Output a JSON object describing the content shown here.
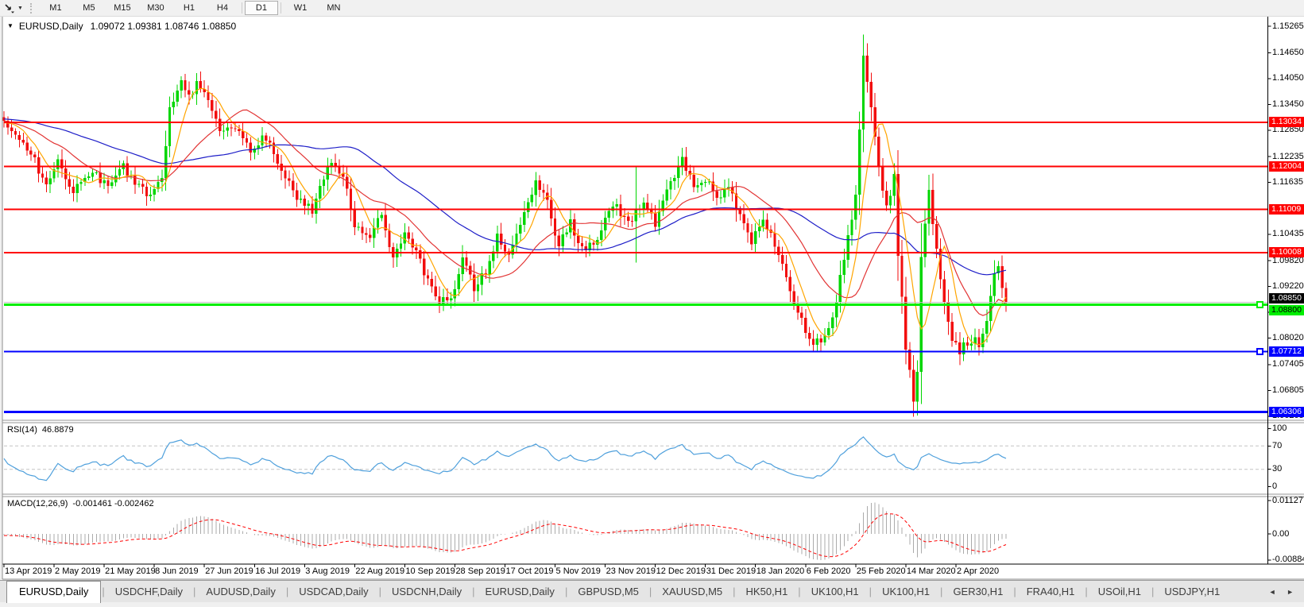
{
  "toolbar": {
    "caret_icon": "▼",
    "timeframes": [
      "M1",
      "M5",
      "M15",
      "M30",
      "H1",
      "H4",
      "D1",
      "W1",
      "MN"
    ],
    "active_timeframe": "D1"
  },
  "window": {
    "title_icon": "▼",
    "symbol": "EURUSD,Daily",
    "ohlc": "1.09072 1.09381 1.08746 1.08850"
  },
  "price_axis": {
    "labels": [
      "1.15265",
      "1.14650",
      "1.14050",
      "1.13450",
      "1.12850",
      "1.12235",
      "1.11635",
      "1.10435",
      "1.09820",
      "1.09220",
      "1.08620",
      "1.08020",
      "1.07405",
      "1.06805",
      "1.06205"
    ]
  },
  "hlines": [
    {
      "label": "1.13034",
      "price": 1.13034,
      "color": "#ff0000",
      "text_color": "#ffffff",
      "width": 2,
      "selected": false
    },
    {
      "label": "1.12004",
      "price": 1.12004,
      "color": "#ff0000",
      "text_color": "#ffffff",
      "width": 2,
      "selected": false
    },
    {
      "label": "1.11009",
      "price": 1.11009,
      "color": "#ff0000",
      "text_color": "#ffffff",
      "width": 2,
      "selected": false
    },
    {
      "label": "1.10008",
      "price": 1.10008,
      "color": "#ff0000",
      "text_color": "#ffffff",
      "width": 2,
      "selected": false
    },
    {
      "label": "1.08800",
      "price": 1.088,
      "color": "#00ee00",
      "text_color": "#000000",
      "width": 3,
      "selected": true
    },
    {
      "label": "1.07712",
      "price": 1.07712,
      "color": "#0000ff",
      "text_color": "#ffffff",
      "width": 2,
      "selected": true
    },
    {
      "label": "1.06306",
      "price": 1.06306,
      "color": "#0000ff",
      "text_color": "#ffffff",
      "width": 3,
      "selected": false
    }
  ],
  "bid": {
    "label": "1.08850",
    "price": 1.0885,
    "line_color": "#c0c0c0",
    "label_bg": "#000000",
    "label_fg": "#ffffff"
  },
  "rsi": {
    "name": "RSI(14)",
    "value": "46.8879",
    "line_color": "#4fa0dc",
    "levels": [
      {
        "label": "100",
        "value": 100
      },
      {
        "label": "70",
        "value": 70
      },
      {
        "label": "30",
        "value": 30
      },
      {
        "label": "0",
        "value": 0
      }
    ],
    "dashed_levels": [
      70,
      30
    ]
  },
  "macd": {
    "name": "MACD(12,26,9)",
    "value": "-0.001461 -0.002462",
    "bar_color": "#ababab",
    "signal_color": "#ff0000",
    "axis": [
      {
        "label": "0.011277",
        "value": 0.011277
      },
      {
        "label": "0.00",
        "value": 0
      },
      {
        "label": "-0.008845",
        "value": -0.008845
      }
    ]
  },
  "date_axis": {
    "candles_per_label": 13,
    "labels": [
      "13 Apr 2019",
      "2 May 2019",
      "21 May 2019",
      "8 Jun 2019",
      "27 Jun 2019",
      "16 Jul 2019",
      "3 Aug 2019",
      "22 Aug 2019",
      "10 Sep 2019",
      "28 Sep 2019",
      "17 Oct 2019",
      "5 Nov 2019",
      "23 Nov 2019",
      "12 Dec 2019",
      "31 Dec 2019",
      "18 Jan 2020",
      "6 Feb 2020",
      "25 Feb 2020",
      "14 Mar 2020",
      "2 Apr 2020"
    ]
  },
  "tabs": {
    "items": [
      "EURUSD,Daily",
      "USDCHF,Daily",
      "AUDUSD,Daily",
      "USDCAD,Daily",
      "USDCNH,Daily",
      "EURUSD,Daily",
      "GBPUSD,M5",
      "XAUUSD,M5",
      "HK50,H1",
      "UK100,H1",
      "UK100,H1",
      "GER30,H1",
      "FRA40,H1",
      "USOil,H1",
      "USDJPY,H1"
    ],
    "active_index": 0,
    "scroll_left_icon": "◄",
    "scroll_right_icon": "►"
  },
  "chart_data": {
    "type": "candlestick",
    "symbol": "EURUSD",
    "timeframe": "Daily",
    "candle_count": 261,
    "bull_color": "#00d600",
    "bear_color": "#f20d0d",
    "price_axis_top": 1.15265,
    "price_axis_bottom": 1.06205,
    "ma_lines": [
      {
        "period": 7,
        "color": "#ffa500"
      },
      {
        "period": 21,
        "color": "#e23434"
      },
      {
        "period": 50,
        "color": "#1e1ec8"
      }
    ],
    "anchors": [
      [
        0,
        1.13
      ],
      [
        3,
        1.1268
      ],
      [
        7,
        1.1235
      ],
      [
        11,
        1.115
      ],
      [
        14,
        1.1215
      ],
      [
        18,
        1.1145
      ],
      [
        23,
        1.1185
      ],
      [
        27,
        1.116
      ],
      [
        31,
        1.12
      ],
      [
        35,
        1.1155
      ],
      [
        38,
        1.1125
      ],
      [
        41,
        1.118
      ],
      [
        43,
        1.133
      ],
      [
        46,
        1.139
      ],
      [
        48,
        1.136
      ],
      [
        50,
        1.14
      ],
      [
        52,
        1.137
      ],
      [
        56,
        1.129
      ],
      [
        60,
        1.1285
      ],
      [
        64,
        1.124
      ],
      [
        68,
        1.127
      ],
      [
        72,
        1.119
      ],
      [
        76,
        1.1125
      ],
      [
        80,
        1.11
      ],
      [
        84,
        1.1205
      ],
      [
        88,
        1.1185
      ],
      [
        91,
        1.106
      ],
      [
        95,
        1.104
      ],
      [
        98,
        1.109
      ],
      [
        101,
        1.099
      ],
      [
        104,
        1.104
      ],
      [
        107,
        1.1
      ],
      [
        110,
        1.093
      ],
      [
        113,
        1.089
      ],
      [
        116,
        1.0885
      ],
      [
        119,
        1.099
      ],
      [
        122,
        1.092
      ],
      [
        125,
        1.0955
      ],
      [
        128,
        1.104
      ],
      [
        131,
        1.1
      ],
      [
        134,
        1.1075
      ],
      [
        138,
        1.116
      ],
      [
        141,
        1.112
      ],
      [
        144,
        1.1015
      ],
      [
        147,
        1.107
      ],
      [
        150,
        1.1005
      ],
      [
        153,
        1.102
      ],
      [
        156,
        1.1075
      ],
      [
        159,
        1.111
      ],
      [
        162,
        1.1065
      ],
      [
        164,
        1.109
      ],
      [
        166,
        1.1115
      ],
      [
        169,
        1.107
      ],
      [
        173,
        1.116
      ],
      [
        176,
        1.1215
      ],
      [
        179,
        1.116
      ],
      [
        182,
        1.1175
      ],
      [
        185,
        1.112
      ],
      [
        188,
        1.115
      ],
      [
        191,
        1.1085
      ],
      [
        194,
        1.103
      ],
      [
        197,
        1.108
      ],
      [
        200,
        1.1015
      ],
      [
        203,
        1.095
      ],
      [
        206,
        1.086
      ],
      [
        209,
        1.08
      ],
      [
        212,
        1.079
      ],
      [
        215,
        1.085
      ],
      [
        218,
        1.0985
      ],
      [
        221,
        1.1135
      ],
      [
        222,
        1.129
      ],
      [
        223,
        1.1465
      ],
      [
        224,
        1.139
      ],
      [
        226,
        1.128
      ],
      [
        228,
        1.114
      ],
      [
        229,
        1.11
      ],
      [
        231,
        1.118
      ],
      [
        232,
        1.1
      ],
      [
        234,
        1.078
      ],
      [
        236,
        1.066
      ],
      [
        237,
        1.073
      ],
      [
        238,
        1.098
      ],
      [
        240,
        1.114
      ],
      [
        242,
        1.101
      ],
      [
        244,
        1.088
      ],
      [
        246,
        1.08
      ],
      [
        248,
        1.0775
      ],
      [
        250,
        1.079
      ],
      [
        252,
        1.081
      ],
      [
        253,
        1.078
      ],
      [
        255,
        1.084
      ],
      [
        257,
        1.0945
      ],
      [
        258,
        1.096
      ],
      [
        259,
        1.092
      ],
      [
        260,
        1.0885
      ]
    ],
    "extremes": [
      [
        164,
        "high",
        1.12
      ],
      [
        164,
        "low",
        1.0978
      ],
      [
        223,
        "high",
        1.1505
      ],
      [
        236,
        "low",
        1.064
      ]
    ]
  }
}
